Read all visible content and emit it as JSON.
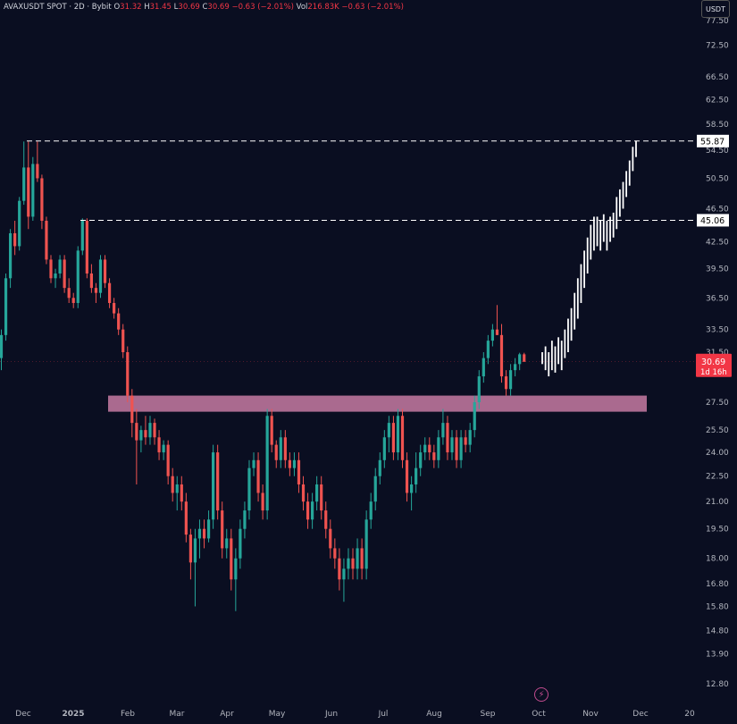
{
  "header": {
    "symbol": "AVAXUSDT SPOT · 2D · Bybit",
    "open_label": "O",
    "open": "31.32",
    "high_label": "H",
    "high": "31.45",
    "low_label": "L",
    "low": "30.69",
    "close_label": "C",
    "close": "30.69",
    "change": "−0.63 (−2.01%)",
    "vol_label": "Vol",
    "vol": "216.83K",
    "vol_change": "−0.63 (−2.01%)"
  },
  "currency": "USDT",
  "colors": {
    "background": "#0a0e21",
    "up": "#26a69a",
    "down": "#ef5350",
    "projection": "#ffffff",
    "zone": "#e08ab4",
    "price_tag": "#f23645"
  },
  "chart_data": {
    "type": "candlestick",
    "y_scale": "log",
    "x_tick_labels": [
      "Dec",
      "2025",
      "Feb",
      "Mar",
      "Apr",
      "May",
      "Jun",
      "Jul",
      "Aug",
      "Sep",
      "Oct",
      "Nov",
      "Dec",
      "20"
    ],
    "y_tick_labels": [
      "77.50",
      "72.50",
      "66.50",
      "62.50",
      "58.50",
      "54.50",
      "50.50",
      "46.50",
      "42.50",
      "39.50",
      "36.50",
      "33.50",
      "31.50",
      "27.50",
      "25.50",
      "24.00",
      "22.50",
      "21.00",
      "19.50",
      "18.00",
      "16.80",
      "15.80",
      "14.80",
      "13.90",
      "12.80"
    ],
    "levels": [
      {
        "value": 55.87,
        "label": "55.87"
      },
      {
        "value": 45.06,
        "label": "45.06"
      }
    ],
    "current_price": {
      "value": 30.69,
      "label": "30.69",
      "countdown": "1d 16h"
    },
    "support_zone": [
      26.8,
      28.0
    ],
    "candles": [
      [
        31.0,
        33.5,
        30.0,
        33.0
      ],
      [
        33.0,
        39.0,
        32.5,
        38.5
      ],
      [
        38.5,
        44.0,
        37.5,
        43.5
      ],
      [
        43.5,
        45.0,
        41.0,
        42.0
      ],
      [
        42.0,
        48.0,
        41.5,
        47.5
      ],
      [
        47.5,
        55.8,
        47.0,
        52.0
      ],
      [
        52.0,
        55.8,
        44.0,
        45.5
      ],
      [
        45.5,
        53.5,
        45.0,
        52.5
      ],
      [
        52.5,
        55.8,
        50.0,
        50.5
      ],
      [
        50.5,
        51.0,
        44.0,
        45.0
      ],
      [
        45.0,
        45.5,
        40.0,
        40.5
      ],
      [
        40.5,
        41.0,
        38.0,
        38.5
      ],
      [
        38.5,
        39.5,
        37.5,
        39.0
      ],
      [
        39.0,
        41.0,
        38.5,
        40.5
      ],
      [
        40.5,
        41.0,
        37.0,
        37.5
      ],
      [
        37.5,
        38.5,
        36.0,
        36.5
      ],
      [
        36.5,
        37.0,
        35.5,
        36.0
      ],
      [
        36.0,
        42.0,
        35.5,
        41.5
      ],
      [
        41.5,
        45.3,
        41.0,
        45.0
      ],
      [
        45.0,
        45.3,
        38.5,
        39.0
      ],
      [
        39.0,
        40.0,
        37.0,
        37.5
      ],
      [
        37.5,
        38.0,
        36.0,
        37.0
      ],
      [
        37.0,
        41.0,
        36.5,
        40.5
      ],
      [
        40.5,
        41.0,
        37.5,
        38.0
      ],
      [
        38.0,
        38.5,
        35.5,
        36.0
      ],
      [
        36.0,
        36.5,
        34.5,
        35.0
      ],
      [
        35.0,
        35.5,
        33.0,
        33.5
      ],
      [
        33.5,
        34.0,
        31.0,
        31.5
      ],
      [
        31.5,
        32.0,
        27.5,
        28.0
      ],
      [
        28.0,
        28.5,
        25.0,
        26.0
      ],
      [
        26.0,
        27.0,
        22.0,
        24.8
      ],
      [
        24.8,
        25.8,
        24.0,
        25.5
      ],
      [
        25.5,
        26.5,
        24.5,
        25.0
      ],
      [
        25.0,
        26.5,
        24.5,
        26.0
      ],
      [
        26.0,
        26.3,
        24.5,
        25.0
      ],
      [
        25.0,
        25.5,
        23.5,
        24.0
      ],
      [
        24.0,
        24.8,
        23.5,
        24.5
      ],
      [
        24.5,
        24.8,
        22.0,
        22.5
      ],
      [
        22.5,
        23.0,
        21.0,
        21.5
      ],
      [
        21.5,
        22.5,
        20.5,
        22.0
      ],
      [
        22.0,
        22.5,
        20.5,
        21.0
      ],
      [
        21.0,
        21.5,
        18.8,
        19.2
      ],
      [
        19.2,
        19.5,
        17.0,
        17.8
      ],
      [
        17.8,
        19.5,
        15.8,
        19.0
      ],
      [
        19.0,
        20.0,
        18.0,
        19.5
      ],
      [
        19.5,
        20.0,
        18.5,
        19.0
      ],
      [
        19.0,
        20.5,
        18.8,
        20.0
      ],
      [
        20.0,
        24.5,
        19.5,
        24.0
      ],
      [
        24.0,
        24.5,
        20.0,
        20.5
      ],
      [
        20.5,
        21.0,
        18.0,
        18.5
      ],
      [
        18.5,
        19.5,
        18.0,
        19.0
      ],
      [
        19.0,
        19.5,
        16.5,
        17.0
      ],
      [
        17.0,
        18.5,
        15.6,
        18.0
      ],
      [
        18.0,
        20.0,
        17.5,
        19.5
      ],
      [
        19.5,
        21.0,
        19.0,
        20.5
      ],
      [
        20.5,
        23.5,
        20.0,
        23.0
      ],
      [
        23.0,
        24.0,
        22.5,
        23.5
      ],
      [
        23.5,
        24.0,
        21.0,
        21.5
      ],
      [
        21.5,
        22.0,
        20.0,
        20.5
      ],
      [
        20.5,
        27.0,
        20.0,
        26.5
      ],
      [
        26.5,
        27.0,
        24.0,
        24.5
      ],
      [
        24.5,
        24.8,
        23.0,
        23.5
      ],
      [
        23.5,
        25.5,
        23.0,
        25.0
      ],
      [
        25.0,
        25.5,
        23.0,
        23.5
      ],
      [
        23.5,
        24.0,
        22.5,
        23.0
      ],
      [
        23.0,
        24.0,
        22.5,
        23.5
      ],
      [
        23.5,
        24.0,
        21.5,
        22.0
      ],
      [
        22.0,
        22.5,
        20.5,
        21.0
      ],
      [
        21.0,
        21.5,
        19.5,
        20.0
      ],
      [
        20.0,
        21.5,
        19.5,
        21.0
      ],
      [
        21.0,
        22.5,
        20.5,
        22.0
      ],
      [
        22.0,
        22.5,
        20.0,
        20.5
      ],
      [
        20.5,
        21.0,
        19.0,
        19.5
      ],
      [
        19.5,
        20.0,
        18.0,
        18.5
      ],
      [
        18.5,
        19.0,
        17.5,
        18.0
      ],
      [
        18.0,
        18.5,
        16.5,
        17.0
      ],
      [
        17.0,
        18.0,
        16.0,
        17.5
      ],
      [
        17.5,
        18.5,
        17.0,
        18.0
      ],
      [
        18.0,
        18.5,
        17.0,
        17.5
      ],
      [
        17.5,
        19.0,
        17.0,
        18.5
      ],
      [
        18.5,
        19.0,
        17.0,
        17.5
      ],
      [
        17.5,
        20.5,
        17.0,
        20.0
      ],
      [
        20.0,
        21.5,
        19.5,
        21.0
      ],
      [
        21.0,
        23.0,
        20.5,
        22.5
      ],
      [
        22.5,
        24.0,
        22.0,
        23.5
      ],
      [
        23.5,
        25.5,
        23.0,
        25.0
      ],
      [
        25.0,
        26.5,
        24.0,
        26.0
      ],
      [
        26.0,
        26.5,
        23.5,
        24.0
      ],
      [
        24.0,
        27.0,
        23.5,
        26.5
      ],
      [
        26.5,
        27.0,
        23.0,
        23.5
      ],
      [
        23.5,
        24.0,
        21.0,
        21.5
      ],
      [
        21.5,
        22.5,
        20.5,
        22.0
      ],
      [
        22.0,
        24.0,
        21.5,
        23.0
      ],
      [
        23.0,
        24.5,
        22.5,
        24.0
      ],
      [
        24.0,
        25.0,
        23.5,
        24.5
      ],
      [
        24.5,
        25.0,
        23.5,
        24.0
      ],
      [
        24.0,
        24.5,
        23.0,
        23.5
      ],
      [
        23.5,
        25.5,
        23.0,
        25.0
      ],
      [
        25.0,
        27.0,
        24.5,
        26.0
      ],
      [
        26.0,
        26.5,
        23.5,
        24.0
      ],
      [
        24.0,
        25.5,
        23.5,
        25.0
      ],
      [
        25.0,
        25.5,
        23.0,
        23.5
      ],
      [
        23.5,
        25.5,
        23.0,
        25.0
      ],
      [
        25.0,
        25.5,
        24.0,
        24.5
      ],
      [
        24.5,
        26.0,
        24.0,
        25.5
      ],
      [
        25.5,
        28.0,
        25.0,
        27.5
      ],
      [
        27.5,
        30.0,
        27.0,
        29.5
      ],
      [
        29.5,
        31.5,
        29.0,
        31.0
      ],
      [
        31.0,
        33.0,
        30.5,
        32.5
      ],
      [
        32.5,
        34.0,
        32.0,
        33.5
      ],
      [
        33.5,
        35.8,
        33.0,
        33.0
      ],
      [
        33.0,
        34.0,
        29.0,
        29.5
      ],
      [
        29.5,
        30.0,
        28.0,
        28.5
      ],
      [
        28.5,
        30.5,
        28.0,
        30.0
      ],
      [
        30.0,
        31.0,
        29.5,
        30.5
      ],
      [
        30.5,
        31.45,
        30.0,
        31.32
      ],
      [
        31.32,
        31.45,
        30.69,
        30.69
      ]
    ],
    "projection_bars": [
      [
        30.5,
        31.5
      ],
      [
        30.0,
        32.0
      ],
      [
        29.5,
        31.5
      ],
      [
        30.0,
        32.5
      ],
      [
        29.8,
        32.0
      ],
      [
        30.5,
        32.8
      ],
      [
        30.0,
        32.5
      ],
      [
        31.0,
        33.5
      ],
      [
        31.5,
        34.5
      ],
      [
        32.5,
        35.5
      ],
      [
        33.5,
        37.0
      ],
      [
        34.5,
        38.5
      ],
      [
        36.0,
        40.0
      ],
      [
        37.5,
        41.5
      ],
      [
        39.0,
        43.0
      ],
      [
        40.5,
        44.5
      ],
      [
        41.5,
        45.5
      ],
      [
        42.0,
        45.5
      ],
      [
        41.5,
        45.0
      ],
      [
        42.5,
        45.8
      ],
      [
        41.5,
        45.0
      ],
      [
        42.5,
        45.5
      ],
      [
        43.0,
        46.0
      ],
      [
        44.0,
        48.0
      ],
      [
        45.5,
        49.0
      ],
      [
        46.5,
        50.0
      ],
      [
        48.0,
        51.5
      ],
      [
        49.5,
        53.0
      ],
      [
        51.5,
        55.0
      ],
      [
        53.5,
        55.87
      ]
    ]
  }
}
